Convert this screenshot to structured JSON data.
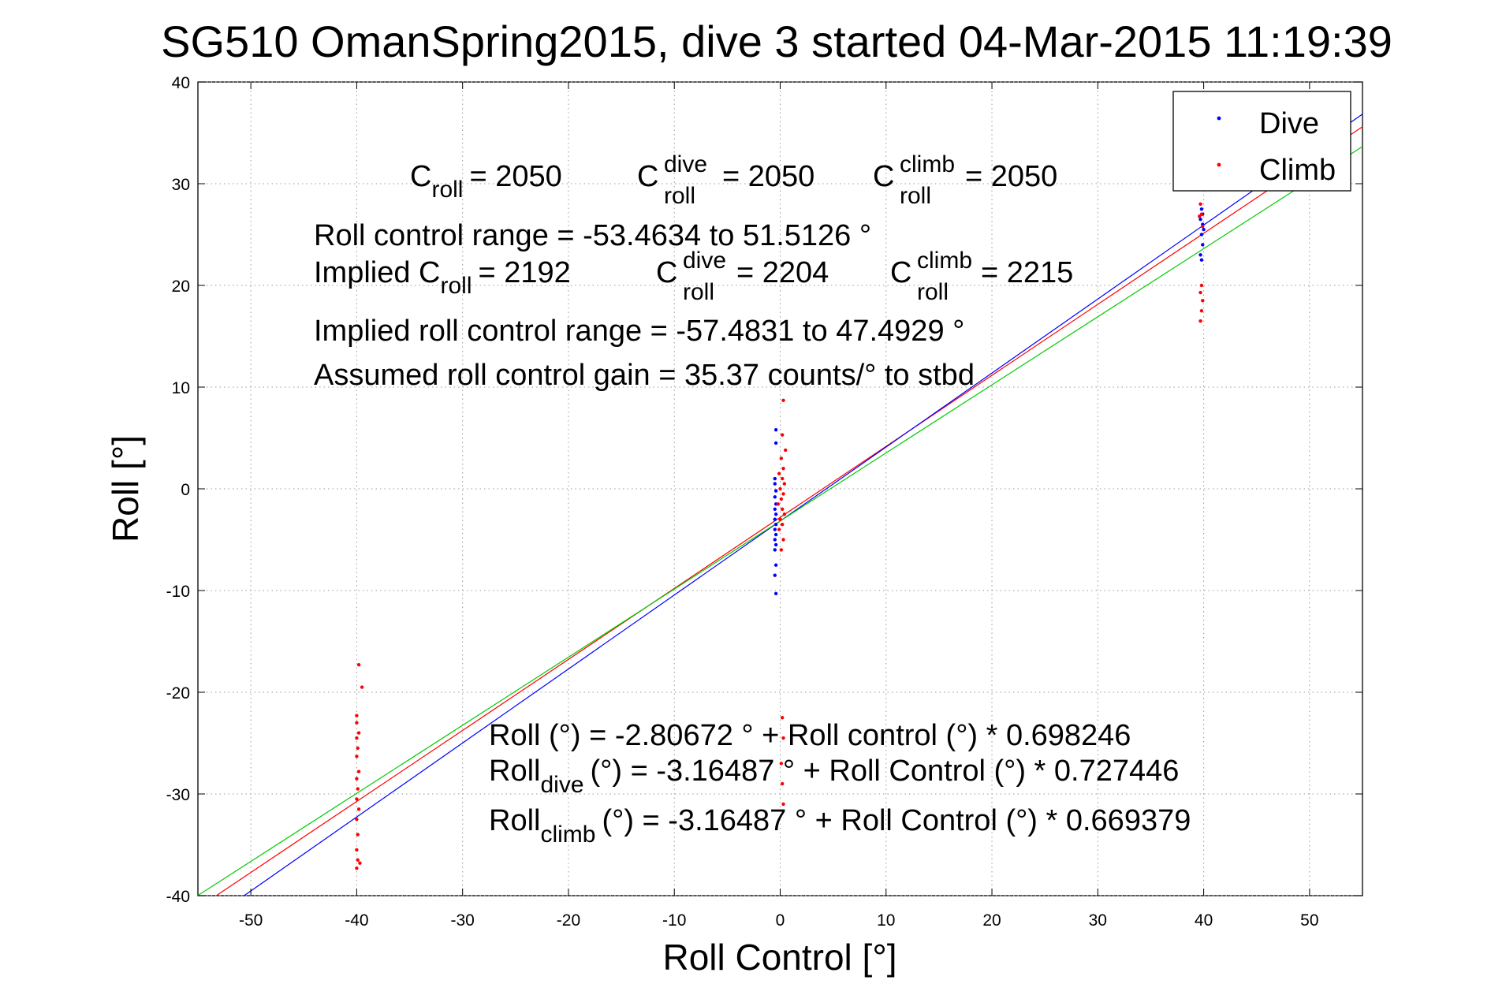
{
  "chart_data": {
    "type": "scatter",
    "title": "SG510 OmanSpring2015, dive 3 started 04-Mar-2015 11:19:39",
    "xlabel": "Roll Control [°]",
    "ylabel": "Roll [°]",
    "xlim": [
      -55,
      55
    ],
    "ylim": [
      -40,
      40
    ],
    "xticks": [
      -50,
      -40,
      -30,
      -20,
      -10,
      0,
      10,
      20,
      30,
      40,
      50
    ],
    "yticks": [
      -40,
      -30,
      -20,
      -10,
      0,
      10,
      20,
      30,
      40
    ],
    "grid": true,
    "legend_position": "top-right",
    "colors": {
      "dive": "#0000ff",
      "climb": "#ff0000",
      "combined_fit": "#ff0000",
      "dive_fit": "#0000ff",
      "climb_fit": "#00cc00"
    },
    "series": [
      {
        "name": "Dive",
        "color": "#0000ff",
        "points": [
          [
            -0.4,
            5.8
          ],
          [
            -0.4,
            4.5
          ],
          [
            -0.5,
            1.0
          ],
          [
            -0.5,
            0.5
          ],
          [
            -0.4,
            -0.2
          ],
          [
            -0.5,
            -0.8
          ],
          [
            -0.4,
            -1.5
          ],
          [
            -0.5,
            -2.0
          ],
          [
            -0.4,
            -2.5
          ],
          [
            -0.5,
            -3.0
          ],
          [
            -0.4,
            -3.5
          ],
          [
            -0.5,
            -4.0
          ],
          [
            -0.4,
            -4.5
          ],
          [
            -0.5,
            -5.0
          ],
          [
            -0.4,
            -5.5
          ],
          [
            -0.5,
            -6.0
          ],
          [
            -0.4,
            -7.5
          ],
          [
            -0.5,
            -8.5
          ],
          [
            -0.4,
            -10.3
          ],
          [
            39.7,
            26.5
          ],
          [
            39.8,
            27.5
          ],
          [
            39.9,
            26.0
          ],
          [
            39.8,
            25.0
          ],
          [
            39.9,
            24.0
          ],
          [
            39.7,
            23.0
          ],
          [
            39.8,
            22.5
          ],
          [
            39.9,
            27.0
          ],
          [
            40.0,
            25.5
          ]
        ]
      },
      {
        "name": "Climb",
        "color": "#ff0000",
        "points": [
          [
            -39.8,
            -17.3
          ],
          [
            -39.5,
            -19.5
          ],
          [
            -40.0,
            -22.3
          ],
          [
            -40.0,
            -23.0
          ],
          [
            -39.8,
            -24.0
          ],
          [
            -40.0,
            -24.5
          ],
          [
            -39.9,
            -25.5
          ],
          [
            -40.0,
            -26.3
          ],
          [
            -39.8,
            -27.8
          ],
          [
            -40.0,
            -28.5
          ],
          [
            -39.9,
            -29.5
          ],
          [
            -40.0,
            -30.5
          ],
          [
            -39.8,
            -31.5
          ],
          [
            -40.0,
            -32.5
          ],
          [
            -39.9,
            -34.0
          ],
          [
            -40.0,
            -35.5
          ],
          [
            -39.9,
            -36.5
          ],
          [
            -40.0,
            -37.3
          ],
          [
            -39.7,
            -36.8
          ],
          [
            0.3,
            8.7
          ],
          [
            0.2,
            5.3
          ],
          [
            0.5,
            3.8
          ],
          [
            0.1,
            3.0
          ],
          [
            0.3,
            2.0
          ],
          [
            -0.1,
            1.5
          ],
          [
            0.2,
            1.0
          ],
          [
            0.4,
            0.5
          ],
          [
            0.0,
            0.0
          ],
          [
            0.3,
            -0.5
          ],
          [
            0.1,
            -1.0
          ],
          [
            -0.2,
            -1.5
          ],
          [
            0.2,
            -2.0
          ],
          [
            0.4,
            -2.5
          ],
          [
            0.0,
            -3.0
          ],
          [
            0.2,
            -3.5
          ],
          [
            -0.1,
            -4.0
          ],
          [
            0.3,
            -5.0
          ],
          [
            0.1,
            -6.0
          ],
          [
            0.2,
            -22.5
          ],
          [
            0.3,
            -24.5
          ],
          [
            0.1,
            -27.0
          ],
          [
            0.2,
            -29.0
          ],
          [
            0.3,
            -31.0
          ],
          [
            39.7,
            28.0
          ],
          [
            39.8,
            27.0
          ],
          [
            39.9,
            25.8
          ],
          [
            39.8,
            20.0
          ],
          [
            39.7,
            19.3
          ],
          [
            39.9,
            18.5
          ],
          [
            39.8,
            17.5
          ],
          [
            39.7,
            16.5
          ],
          [
            39.6,
            26.8
          ]
        ]
      }
    ],
    "fit_lines": [
      {
        "color": "#ff0000",
        "intercept": -2.80672,
        "slope": 0.698246
      },
      {
        "color": "#0000ff",
        "intercept": -3.16487,
        "slope": 0.727446
      },
      {
        "color": "#00cc00",
        "intercept": -3.16487,
        "slope": 0.669379
      }
    ],
    "annotations": {
      "c_roll_label": "C",
      "c_roll_sub": "roll",
      "c_roll_value": "= 2050",
      "c_roll_dive_sup": "dive",
      "c_roll_dive_sub": "roll",
      "c_roll_dive_value": "= 2050",
      "c_roll_climb_sup": "climb",
      "c_roll_climb_sub": "roll",
      "c_roll_climb_value": "= 2050",
      "roll_control_range": "Roll control range = -53.4634 to 51.5126 °",
      "implied_prefix": "Implied C",
      "implied_c_roll_sub": "roll",
      "implied_c_roll_value": "= 2192",
      "implied_dive_sup": "dive",
      "implied_dive_sub": "roll",
      "implied_dive_value": "= 2204",
      "implied_climb_sup": "climb",
      "implied_climb_sub": "roll",
      "implied_climb_value": "= 2215",
      "implied_range": "Implied roll control range = -57.4831 to 47.4929 °",
      "assumed_gain": "Assumed roll control gain = 35.37 counts/° to stbd",
      "fit_all": "Roll (°) = -2.80672 ° + Roll control (°) * 0.698246",
      "fit_dive_prefix": "Roll",
      "fit_dive_sub": "dive",
      "fit_dive_rest": "(°) = -3.16487 ° + Roll Control (°) * 0.727446",
      "fit_climb_prefix": "Roll",
      "fit_climb_sub": "climb",
      "fit_climb_rest": "(°) = -3.16487 ° + Roll Control (°) * 0.669379"
    }
  }
}
